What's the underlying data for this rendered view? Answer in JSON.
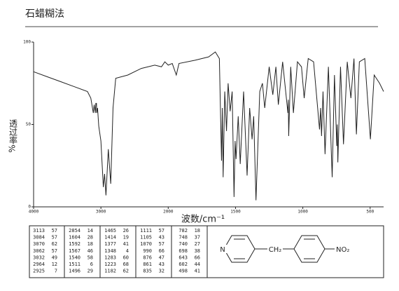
{
  "chart_data": {
    "type": "line",
    "title": "石蜡糊法",
    "xlabel": "波数/cm⁻¹",
    "ylabel": "透过率",
    "ylabel_unit": "%",
    "xlim": [
      4000,
      400
    ],
    "xticks": [
      4000,
      3000,
      2000,
      1500,
      1000,
      500
    ],
    "ylim": [
      0,
      100
    ],
    "yticks": [
      0,
      50,
      100
    ],
    "series": [
      {
        "color": "#222222",
        "x": [
          4000,
          3800,
          3600,
          3400,
          3200,
          3150,
          3113,
          3100,
          3084,
          3075,
          3070,
          3066,
          3062,
          3050,
          3032,
          3000,
          2964,
          2945,
          2925,
          2890,
          2854,
          2820,
          2780,
          2600,
          2400,
          2200,
          2100,
          2050,
          2000,
          1970,
          1940,
          1920,
          1800,
          1700,
          1650,
          1620,
          1604,
          1598,
          1592,
          1580,
          1567,
          1555,
          1540,
          1525,
          1511,
          1503,
          1496,
          1480,
          1465,
          1440,
          1414,
          1395,
          1377,
          1365,
          1348,
          1320,
          1300,
          1283,
          1250,
          1223,
          1200,
          1182,
          1150,
          1111,
          1108,
          1105,
          1090,
          1070,
          1040,
          1010,
          990,
          960,
          920,
          876,
          868,
          861,
          850,
          835,
          810,
          782,
          765,
          748,
          744,
          740,
          720,
          698,
          670,
          643,
          620,
          602,
          580,
          540,
          498,
          470,
          430,
          400
        ],
        "values": [
          82,
          79,
          76,
          73,
          70,
          66,
          57,
          62,
          57,
          63,
          62,
          63,
          57,
          60,
          49,
          40,
          12,
          20,
          7,
          35,
          14,
          60,
          78,
          80,
          84,
          86,
          85,
          88,
          86,
          87,
          80,
          87,
          89,
          91,
          94,
          90,
          28,
          60,
          18,
          70,
          46,
          75,
          58,
          70,
          6,
          40,
          29,
          55,
          26,
          70,
          19,
          60,
          41,
          55,
          4,
          70,
          75,
          60,
          85,
          68,
          85,
          62,
          88,
          57,
          65,
          43,
          85,
          57,
          88,
          85,
          66,
          90,
          88,
          47,
          60,
          43,
          70,
          32,
          85,
          18,
          80,
          37,
          50,
          27,
          85,
          38,
          88,
          66,
          90,
          44,
          88,
          90,
          41,
          80,
          75,
          70
        ]
      }
    ]
  },
  "peak_table": [
    [
      [
        3113,
        57
      ],
      [
        3084,
        57
      ],
      [
        3070,
        62
      ],
      [
        3062,
        57
      ],
      [
        3032,
        49
      ],
      [
        2964,
        12
      ],
      [
        2925,
        7
      ]
    ],
    [
      [
        2854,
        14
      ],
      [
        1604,
        28
      ],
      [
        1592,
        18
      ],
      [
        1567,
        46
      ],
      [
        1540,
        58
      ],
      [
        1511,
        6
      ],
      [
        1496,
        29
      ]
    ],
    [
      [
        1465,
        26
      ],
      [
        1414,
        19
      ],
      [
        1377,
        41
      ],
      [
        1348,
        4
      ],
      [
        1283,
        60
      ],
      [
        1223,
        68
      ],
      [
        1182,
        62
      ]
    ],
    [
      [
        1111,
        57
      ],
      [
        1105,
        43
      ],
      [
        1070,
        57
      ],
      [
        990,
        66
      ],
      [
        876,
        47
      ],
      [
        861,
        43
      ],
      [
        835,
        32
      ]
    ],
    [
      [
        782,
        18
      ],
      [
        748,
        37
      ],
      [
        740,
        27
      ],
      [
        698,
        38
      ],
      [
        643,
        66
      ],
      [
        602,
        44
      ],
      [
        498,
        41
      ]
    ]
  ],
  "structure": {
    "ring_atom": "N",
    "linker": "CH₂",
    "substituent": "NO₂"
  }
}
